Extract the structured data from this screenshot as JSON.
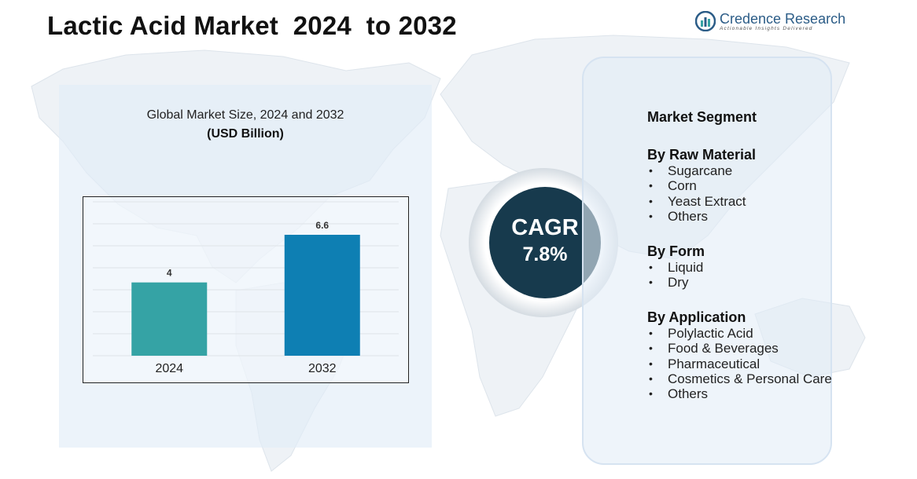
{
  "title": "Lactic Acid Market  2024  to 2032",
  "logo": {
    "name": "Credence Research",
    "tagline": "Actionable Insights Delivered",
    "icon": "credence-logo-icon"
  },
  "colors": {
    "bar_2024": "#35a3a5",
    "bar_2032": "#0e7fb3",
    "cagr_circle": "#173a4d",
    "logo": "#2b5c87"
  },
  "chart_data": {
    "type": "bar",
    "title": "Global Market Size, 2024 and 2032",
    "unit": "(USD Billion)",
    "categories": [
      "2024",
      "2032"
    ],
    "values": [
      4,
      6.6
    ],
    "value_labels": [
      "4",
      "6.6"
    ],
    "ylim": [
      0,
      8.4
    ],
    "grid": true
  },
  "cagr": {
    "label": "CAGR",
    "value": "7.8%"
  },
  "segments": {
    "title": "Market Segment",
    "groups": [
      {
        "heading": "By Raw Material",
        "items": [
          "Sugarcane",
          "Corn",
          "Yeast Extract",
          "Others"
        ]
      },
      {
        "heading": "By Form",
        "items": [
          "Liquid",
          "Dry"
        ]
      },
      {
        "heading": "By Application",
        "items": [
          "Polylactic Acid",
          "Food & Beverages",
          "Pharmaceutical",
          "Cosmetics & Personal Care",
          "Others"
        ]
      }
    ]
  }
}
